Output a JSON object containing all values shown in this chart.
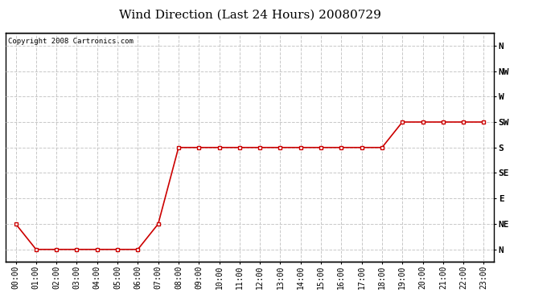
{
  "title": "Wind Direction (Last 24 Hours) 20080729",
  "copyright_text": "Copyright 2008 Cartronics.com",
  "x_labels": [
    "00:00",
    "01:00",
    "02:00",
    "03:00",
    "04:00",
    "05:00",
    "06:00",
    "07:00",
    "08:00",
    "09:00",
    "10:00",
    "11:00",
    "12:00",
    "13:00",
    "14:00",
    "15:00",
    "16:00",
    "17:00",
    "18:00",
    "19:00",
    "20:00",
    "21:00",
    "22:00",
    "23:00"
  ],
  "y_labels": [
    "N",
    "NE",
    "E",
    "SE",
    "S",
    "SW",
    "W",
    "NW",
    "N"
  ],
  "y_values": [
    0,
    45,
    90,
    135,
    180,
    225,
    270,
    315,
    360
  ],
  "data_hours": [
    0,
    1,
    2,
    3,
    4,
    5,
    6,
    7,
    8,
    9,
    10,
    11,
    12,
    13,
    14,
    15,
    16,
    17,
    18,
    19,
    20,
    21,
    22,
    23
  ],
  "data_directions": [
    45,
    0,
    0,
    0,
    0,
    0,
    0,
    45,
    180,
    180,
    180,
    180,
    180,
    180,
    180,
    180,
    180,
    180,
    180,
    225,
    225,
    225,
    225,
    225
  ],
  "line_color": "#cc0000",
  "marker_color": "#cc0000",
  "bg_color": "#ffffff",
  "grid_color": "#c8c8c8",
  "title_fontsize": 11,
  "copyright_fontsize": 6.5,
  "tick_fontsize": 7,
  "ylabel_fontsize": 8
}
